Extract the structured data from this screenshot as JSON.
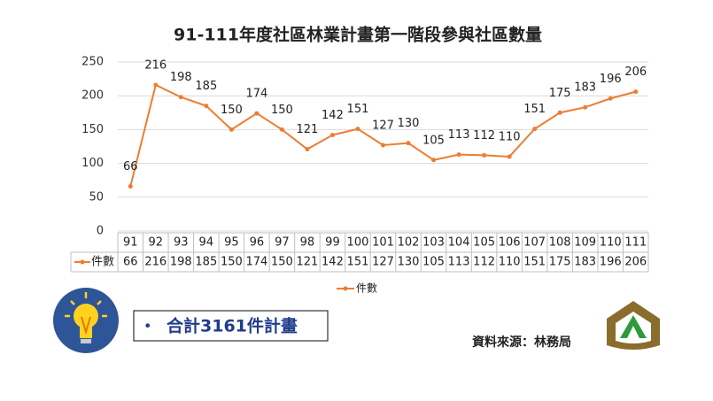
{
  "chart_data": {
    "type": "line",
    "title": "91-111年度社區林業計畫第一階段參與社區數量",
    "categories": [
      "91",
      "92",
      "93",
      "94",
      "95",
      "96",
      "97",
      "98",
      "99",
      "100",
      "101",
      "102",
      "103",
      "104",
      "105",
      "106",
      "107",
      "108",
      "109",
      "110",
      "111"
    ],
    "series": [
      {
        "name": "件數",
        "color": "#ed7d31",
        "values": [
          66,
          216,
          198,
          185,
          150,
          174,
          150,
          121,
          142,
          151,
          127,
          130,
          105,
          113,
          112,
          110,
          151,
          175,
          183,
          196,
          206
        ]
      }
    ],
    "ylim": [
      0,
      250
    ],
    "yticks": [
      0,
      50,
      100,
      150,
      200,
      250
    ],
    "grid": true,
    "legend": "bottom",
    "data_table": true
  },
  "summary": {
    "bullet": "•",
    "text": "合計3161件計畫"
  },
  "source": "資料來源：林務局"
}
